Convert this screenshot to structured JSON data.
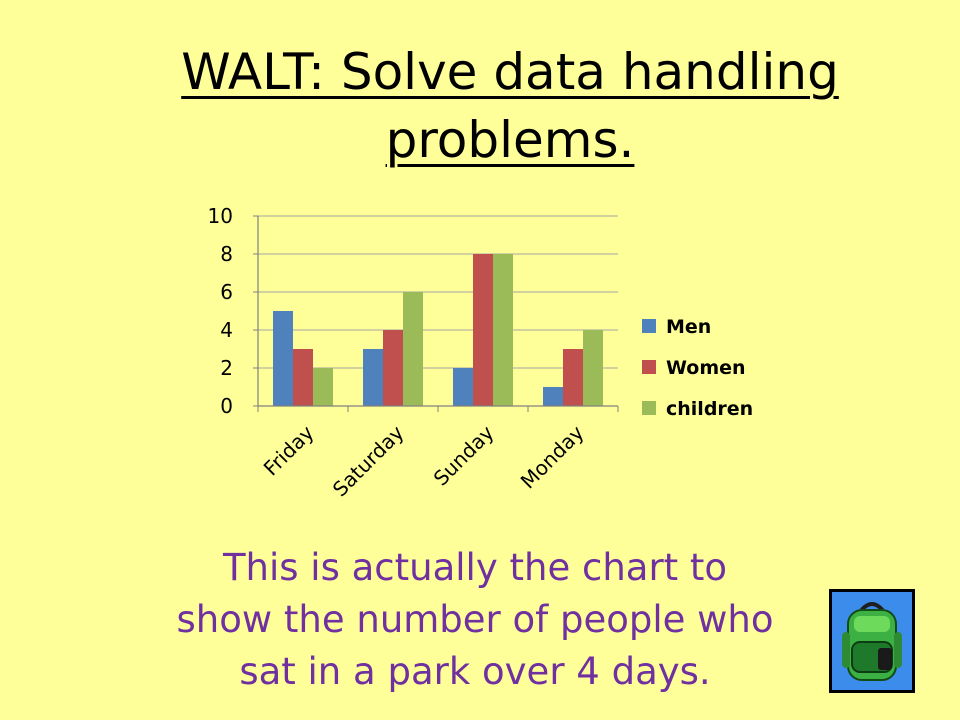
{
  "slide": {
    "title_line1": "WALT: Solve data handling",
    "title_line2": "problems.",
    "caption_line1": "This is actually the chart to",
    "caption_line2": "show the number of people who",
    "caption_line3": "sat in a park over 4 days."
  },
  "icons": {
    "clipart": "backpack-icon"
  },
  "colors": {
    "background": "#FFFF99",
    "caption": "#7030A0"
  },
  "chart_data": {
    "type": "bar",
    "title": "",
    "xlabel": "",
    "ylabel": "",
    "categories": [
      "Friday",
      "Saturday",
      "Sunday",
      "Monday"
    ],
    "series": [
      {
        "name": "Men",
        "values": [
          5,
          3,
          2,
          1
        ],
        "color": "#4F81BD"
      },
      {
        "name": "Women",
        "values": [
          3,
          4,
          8,
          3
        ],
        "color": "#C0504D"
      },
      {
        "name": "children",
        "values": [
          2,
          6,
          8,
          4
        ],
        "color": "#9BBB59"
      }
    ],
    "ylim": [
      0,
      10
    ],
    "yticks": [
      "0",
      "2",
      "4",
      "6",
      "8",
      "10"
    ],
    "grid": true,
    "legend": "right"
  }
}
